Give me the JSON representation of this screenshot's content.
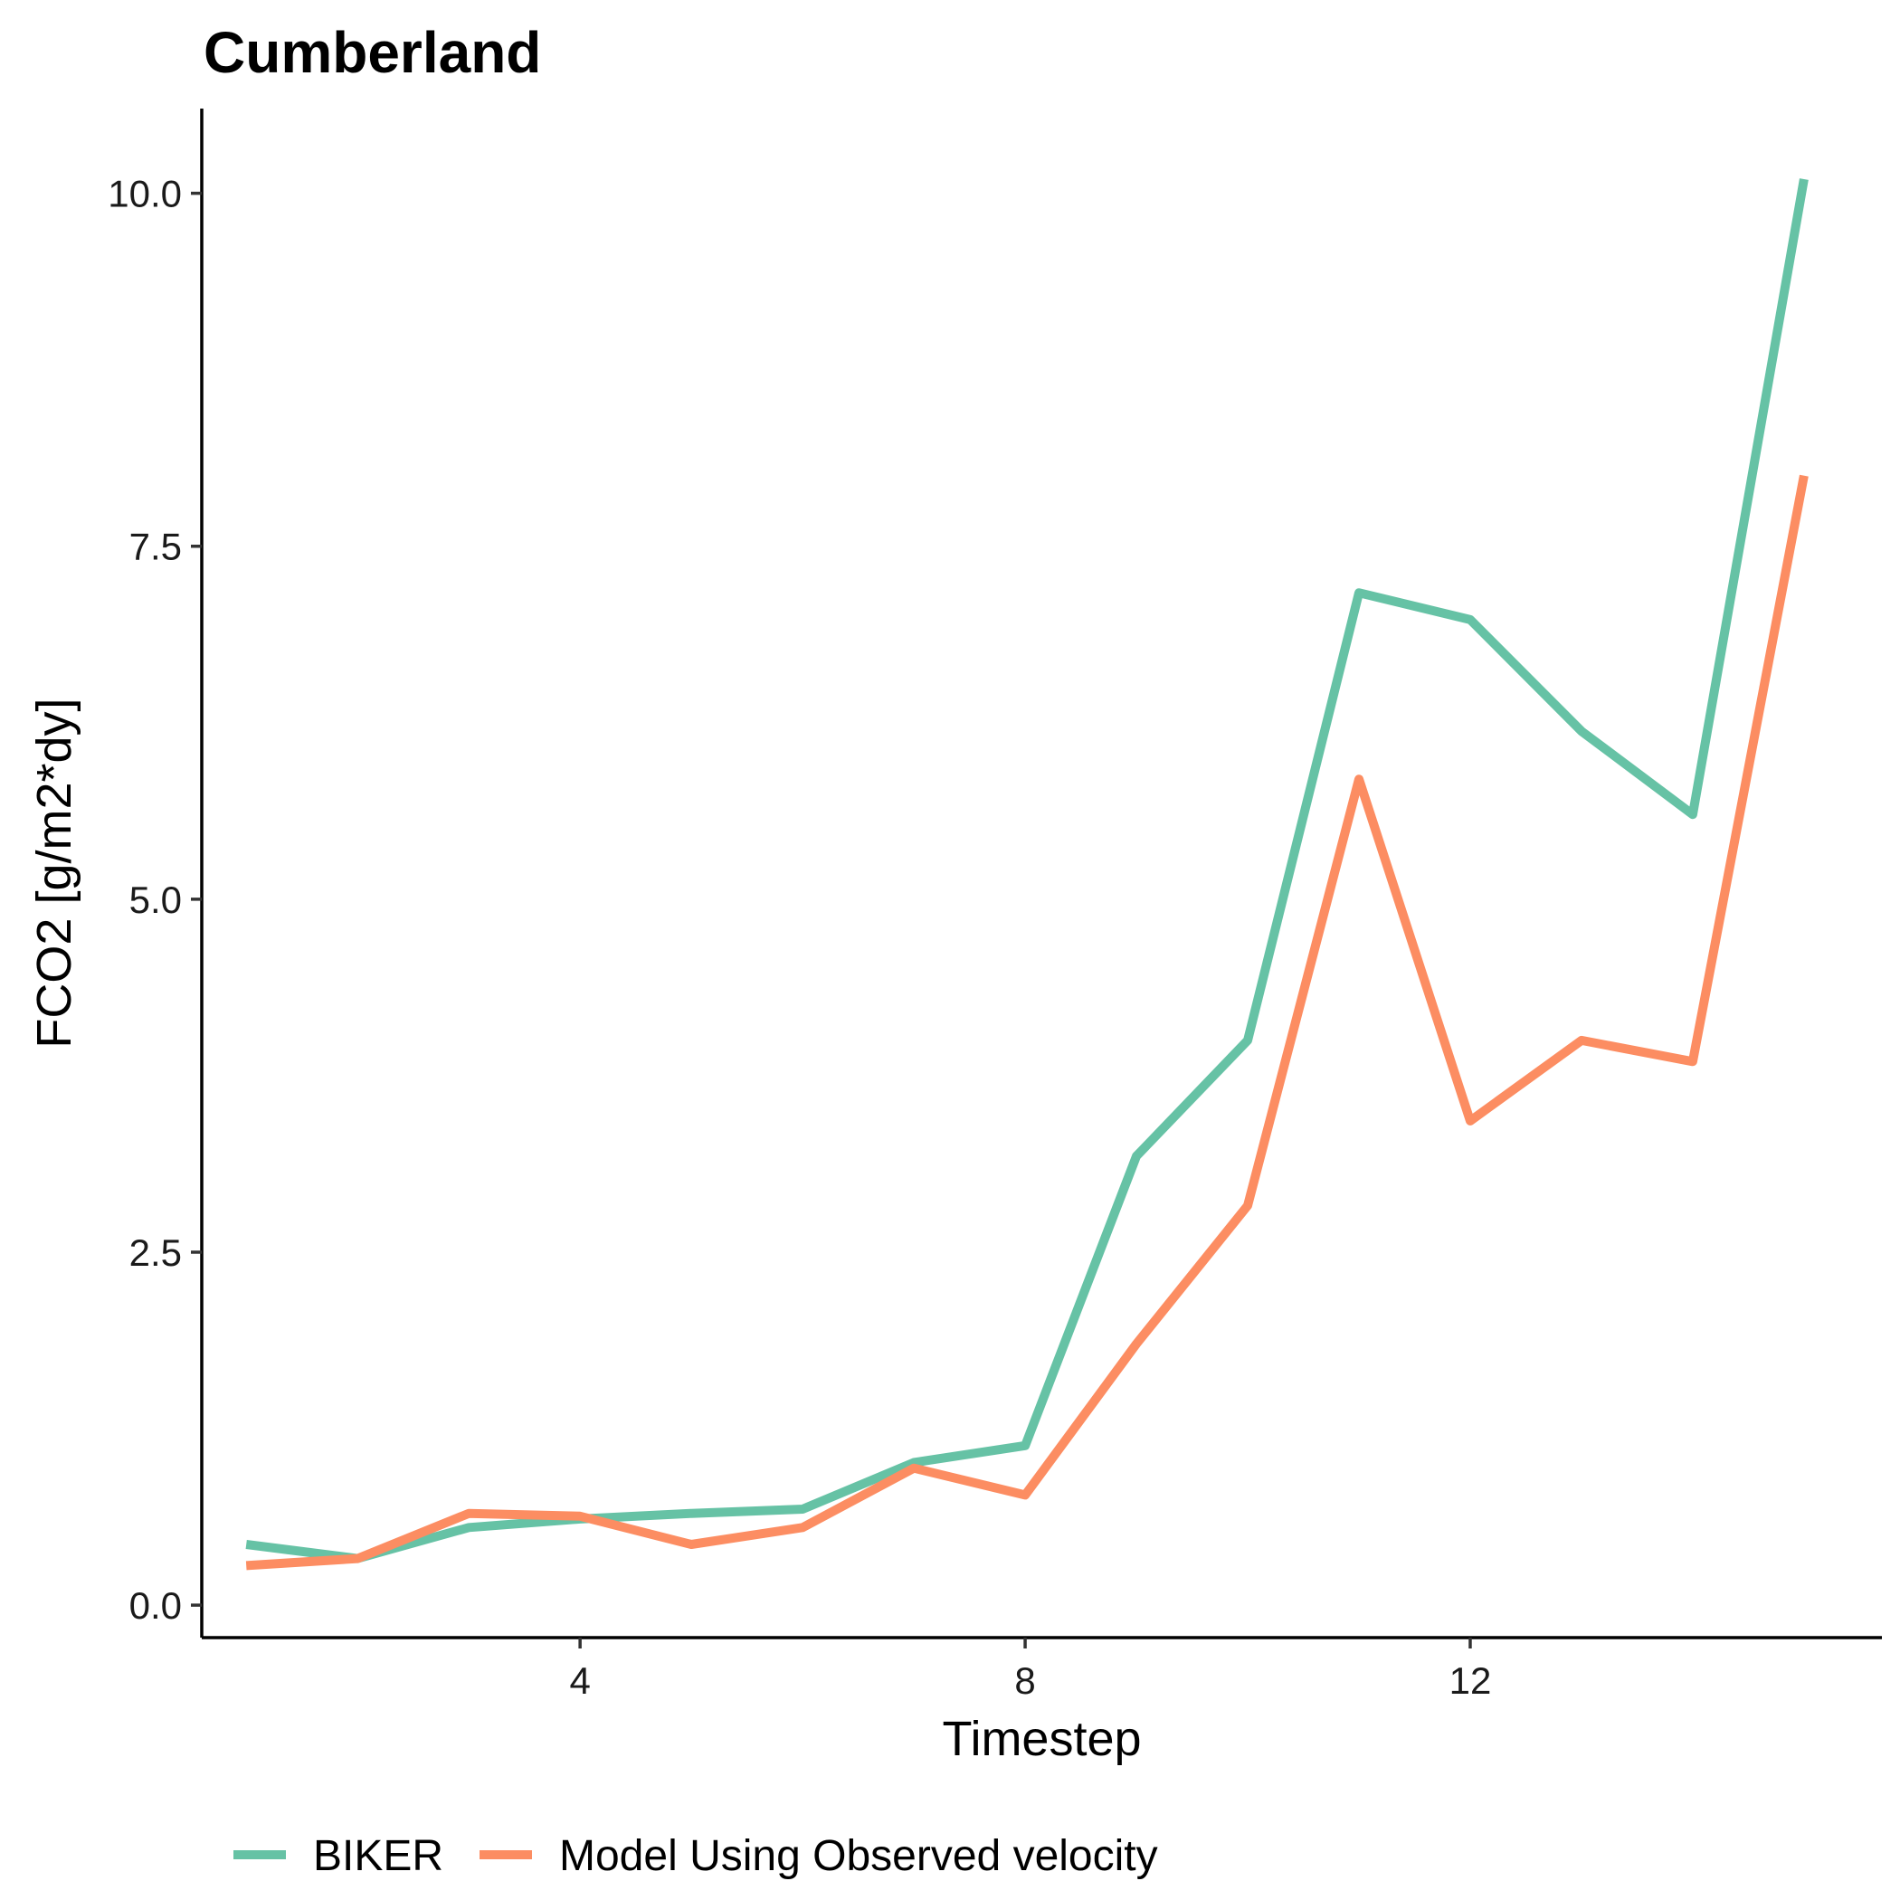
{
  "chart_data": {
    "type": "line",
    "title": "Cumberland",
    "xlabel": "Timestep",
    "ylabel": "FCO2 [g/m2*dy]",
    "xlim": [
      0.6,
      15.7
    ],
    "ylim": [
      -0.23,
      10.6
    ],
    "x_ticks": [
      4,
      8,
      12
    ],
    "y_ticks": [
      0.0,
      2.5,
      5.0,
      7.5,
      10.0
    ],
    "x_tick_labels": [
      "4",
      "8",
      "12"
    ],
    "y_tick_labels": [
      "0.0",
      "2.5",
      "5.0",
      "7.5",
      "10.0"
    ],
    "grid": false,
    "legend_position": "bottom",
    "x": [
      1,
      2,
      3,
      4,
      5,
      6,
      7,
      8,
      9,
      10,
      11,
      12,
      13,
      14,
      15
    ],
    "series": [
      {
        "name": "BIKER",
        "color": "#66c2a5",
        "values": [
          0.43,
          0.33,
          0.55,
          0.61,
          0.65,
          0.68,
          1.01,
          1.13,
          3.18,
          4.0,
          7.17,
          6.98,
          6.19,
          5.6,
          10.1
        ]
      },
      {
        "name": "Model Using Observed velocity",
        "color": "#fc8d62",
        "values": [
          0.28,
          0.33,
          0.65,
          0.63,
          0.43,
          0.55,
          0.97,
          0.78,
          1.85,
          2.83,
          5.85,
          3.43,
          4.0,
          3.85,
          8.0
        ]
      }
    ]
  }
}
